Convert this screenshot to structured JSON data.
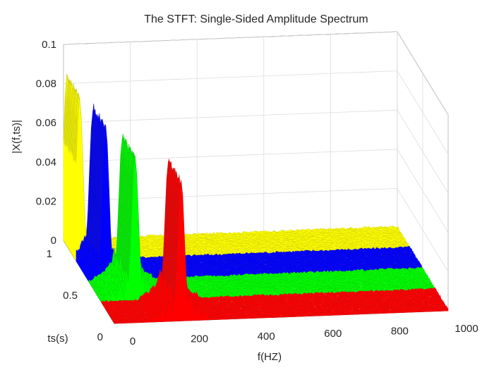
{
  "chart_data": {
    "type": "waterfall-3d",
    "title": "The STFT: Single-Sided Amplitude Spectrum",
    "xlabel": "f(HZ)",
    "ylabel": "ts(s)",
    "zlabel": "|X(f,ts)|",
    "x_ticks": [
      "0",
      "200",
      "400",
      "600",
      "800",
      "1000"
    ],
    "y_ticks": [
      "0",
      "0.5",
      "1"
    ],
    "z_ticks": [
      "0",
      "0.02",
      "0.04",
      "0.06",
      "0.08",
      "0.1"
    ],
    "xlim": [
      0,
      1000
    ],
    "ylim": [
      0,
      1
    ],
    "zlim": [
      0,
      0.1
    ],
    "grid": true,
    "series": [
      {
        "ts_range": [
          0.75,
          1.0
        ],
        "peak_frequency": 10,
        "peak_amplitude": 0.085,
        "color": "#ffff00"
      },
      {
        "ts_range": [
          0.5,
          0.75
        ],
        "peak_frequency": 50,
        "peak_amplitude": 0.08,
        "color": "#0000ff"
      },
      {
        "ts_range": [
          0.25,
          0.5
        ],
        "peak_frequency": 100,
        "peak_amplitude": 0.075,
        "color": "#00ff00"
      },
      {
        "ts_range": [
          0.0,
          0.25
        ],
        "peak_frequency": 200,
        "peak_amplitude": 0.072,
        "color": "#ff0000"
      }
    ]
  }
}
